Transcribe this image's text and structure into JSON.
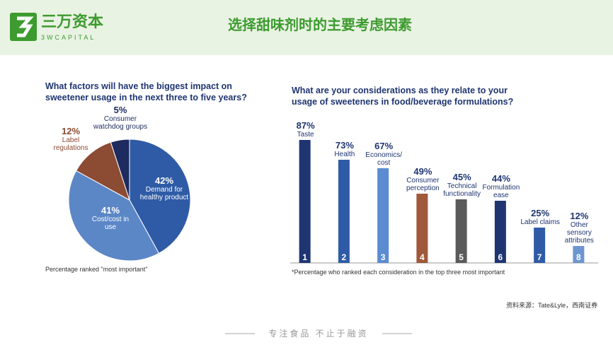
{
  "header": {
    "logo_name": "三万资本",
    "logo_sub": "3WCAPITAL",
    "title": "选择甜味剂时的主要考虑因素"
  },
  "chart_data": [
    {
      "type": "pie",
      "title": "What factors will have the biggest impact on sweetener usage in the next three to five years?",
      "categories": [
        "Demand for healthy product",
        "Cost/cost in use",
        "Label regulations",
        "Consumer watchdog groups"
      ],
      "values": [
        42,
        41,
        12,
        5
      ],
      "value_labels": [
        "42%",
        "41%",
        "12%",
        "5%"
      ],
      "colors": [
        "#2f5ba6",
        "#5b87c6",
        "#8c4b33",
        "#1d2b5f"
      ],
      "note": "Percentage ranked \"most important\""
    },
    {
      "type": "bar",
      "title": "What are your considerations as they relate to your usage of sweeteners in food/beverage formulations?",
      "categories": [
        "Taste",
        "Health",
        "Economics/ cost",
        "Consumer perception",
        "Technical functionality",
        "Formulation ease",
        "Label claims",
        "Other sensory attributes"
      ],
      "values": [
        87,
        73,
        67,
        49,
        45,
        44,
        25,
        12
      ],
      "value_labels": [
        "87%",
        "73%",
        "67%",
        "49%",
        "45%",
        "44%",
        "25%",
        "12%"
      ],
      "ranks": [
        1,
        2,
        3,
        4,
        5,
        6,
        7,
        8
      ],
      "colors": [
        "#1f3572",
        "#2f5ba6",
        "#5b8bd0",
        "#a0593a",
        "#5a5a5a",
        "#1f3572",
        "#2f5ba6",
        "#6d96d0"
      ],
      "ylim": [
        0,
        100
      ],
      "note": "*Percentage who ranked each consideration in the top three most important"
    }
  ],
  "source": "资料来源：Tate&Lyle，西南证券",
  "footer": "专注食品 不止于融资"
}
